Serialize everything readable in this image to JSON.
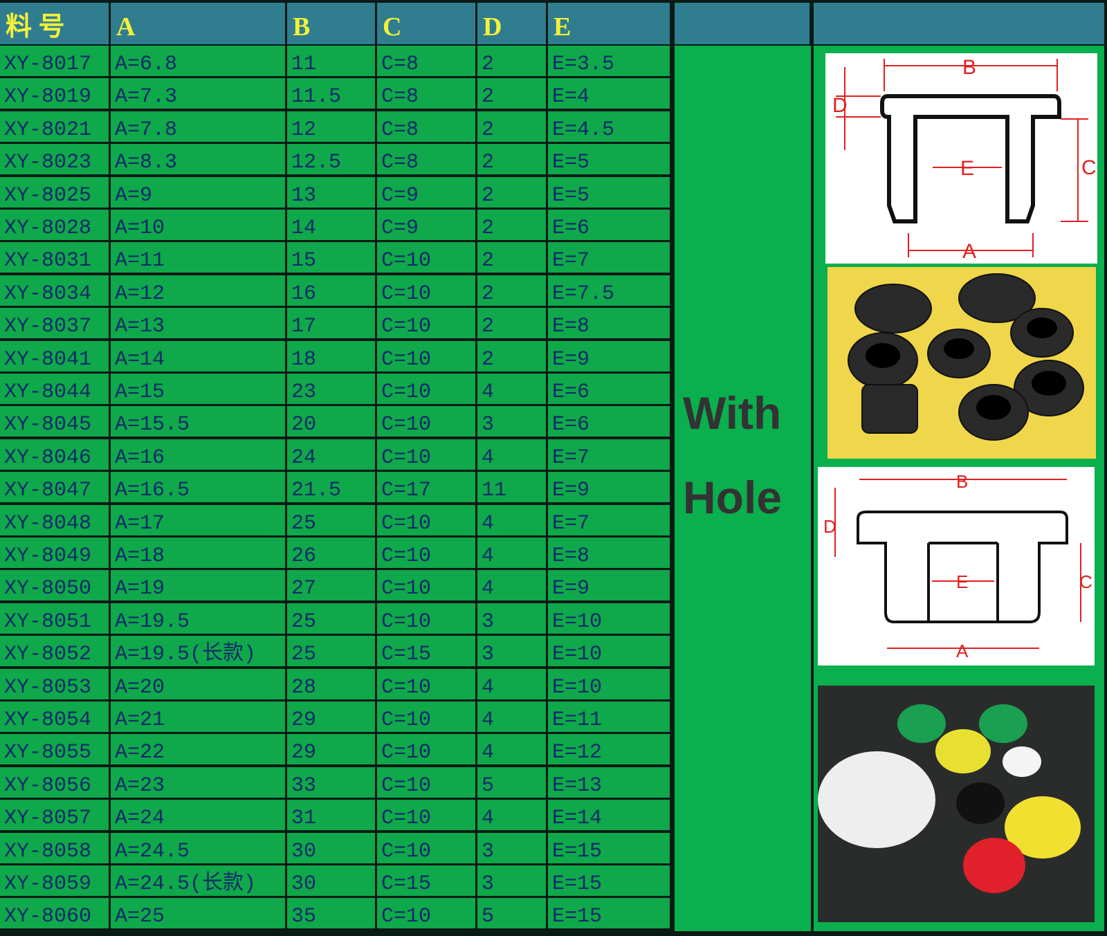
{
  "headers": [
    "料 号",
    "A",
    "B",
    "C",
    "D",
    "E"
  ],
  "rows": [
    [
      "XY-8017",
      "A=6.8",
      "11",
      "C=8",
      "2",
      "E=3.5"
    ],
    [
      "XY-8019",
      "A=7.3",
      "11.5",
      "C=8",
      "2",
      "E=4"
    ],
    [
      "XY-8021",
      "A=7.8",
      "12",
      "C=8",
      "2",
      "E=4.5"
    ],
    [
      "XY-8023",
      "A=8.3",
      "12.5",
      "C=8",
      "2",
      "E=5"
    ],
    [
      "XY-8025",
      "A=9",
      "13",
      "C=9",
      "2",
      "E=5"
    ],
    [
      "XY-8028",
      "A=10",
      "14",
      "C=9",
      "2",
      "E=6"
    ],
    [
      "XY-8031",
      "A=11",
      "15",
      "C=10",
      "2",
      "E=7"
    ],
    [
      "XY-8034",
      "A=12",
      "16",
      "C=10",
      "2",
      "E=7.5"
    ],
    [
      "XY-8037",
      "A=13",
      "17",
      "C=10",
      "2",
      "E=8"
    ],
    [
      "XY-8041",
      "A=14",
      "18",
      "C=10",
      "2",
      "E=9"
    ],
    [
      "XY-8044",
      "A=15",
      "23",
      "C=10",
      "4",
      "E=6"
    ],
    [
      "XY-8045",
      "A=15.5",
      "20",
      "C=10",
      "3",
      "E=6"
    ],
    [
      "XY-8046",
      "A=16",
      "24",
      "C=10",
      "4",
      "E=7"
    ],
    [
      "XY-8047",
      "A=16.5",
      "21.5",
      "C=17",
      "11",
      "E=9"
    ],
    [
      "XY-8048",
      "A=17",
      "25",
      "C=10",
      "4",
      "E=7"
    ],
    [
      "XY-8049",
      "A=18",
      "26",
      "C=10",
      "4",
      "E=8"
    ],
    [
      "XY-8050",
      "A=19",
      "27",
      "C=10",
      "4",
      "E=9"
    ],
    [
      "XY-8051",
      "A=19.5",
      "25",
      "C=10",
      "3",
      "E=10"
    ],
    [
      "XY-8052",
      "A=19.5(长款)",
      "25",
      "C=15",
      "3",
      "E=10"
    ],
    [
      "XY-8053",
      "A=20",
      "28",
      "C=10",
      "4",
      "E=10"
    ],
    [
      "XY-8054",
      "A=21",
      "29",
      "C=10",
      "4",
      "E=11"
    ],
    [
      "XY-8055",
      "A=22",
      "29",
      "C=10",
      "4",
      "E=12"
    ],
    [
      "XY-8056",
      "A=23",
      "33",
      "C=10",
      "5",
      "E=13"
    ],
    [
      "XY-8057",
      "A=24",
      "31",
      "C=10",
      "4",
      "E=14"
    ],
    [
      "XY-8058",
      "A=24.5",
      "30",
      "C=10",
      "3",
      "E=15"
    ],
    [
      "XY-8059",
      "A=24.5(长款)",
      "30",
      "C=15",
      "3",
      "E=15"
    ],
    [
      "XY-8060",
      "A=25",
      "35",
      "C=10",
      "5",
      "E=15"
    ]
  ],
  "middle": {
    "line1": "With",
    "line2": "Hole"
  },
  "diagram_labels": {
    "a": "A",
    "b": "B",
    "c": "C",
    "d": "D",
    "e": "E"
  },
  "colors": {
    "header_bg": "#2f7d8e",
    "header_text": "#f4f13a",
    "cell_bg": "#0fa84a",
    "cell_text": "#0d2a6a",
    "dimension_red": "#e02020"
  }
}
